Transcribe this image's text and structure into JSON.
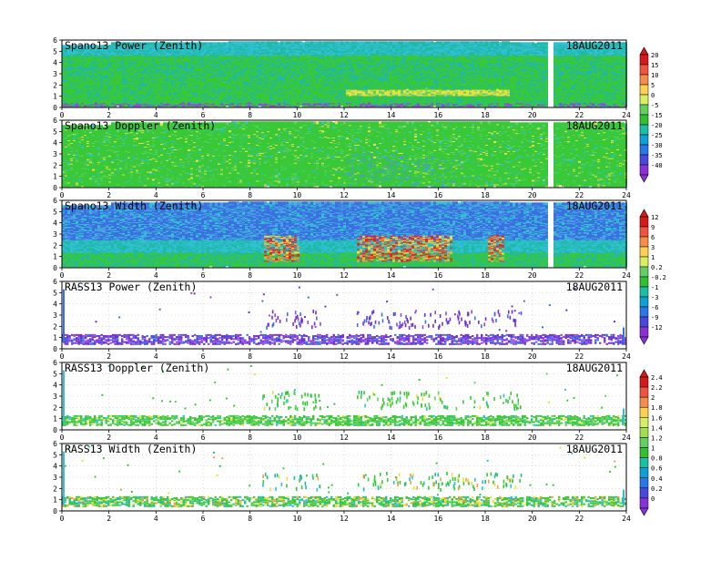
{
  "panels": [
    {
      "id": "spano-power",
      "title": "Spano13 Power (Zenith)",
      "date": "18AUG2011",
      "kind": "spano-power",
      "colorbar": 0
    },
    {
      "id": "spano-doppler",
      "title": "Spano13 Doppler (Zenith)",
      "date": "18AUG2011",
      "kind": "spano-doppler",
      "colorbar": 0
    },
    {
      "id": "spano-width",
      "title": "Spano13 Width (Zenith)",
      "date": "18AUG2011",
      "kind": "spano-width",
      "colorbar": 1
    },
    {
      "id": "rass-power",
      "title": "RASS13 Power (Zenith)",
      "date": "18AUG2011",
      "kind": "rass-power",
      "colorbar": 1
    },
    {
      "id": "rass-doppler",
      "title": "RASS13 Doppler (Zenith)",
      "date": "18AUG2011",
      "kind": "rass-doppler",
      "colorbar": 2
    },
    {
      "id": "rass-width",
      "title": "RASS13 Width (Zenith)",
      "date": "18AUG2011",
      "kind": "rass-width",
      "colorbar": 2
    }
  ],
  "colorbars": [
    {
      "id": "colorbar-1",
      "labels": [
        "20",
        "15",
        "10",
        "5",
        "0",
        "-5",
        "-15",
        "-20",
        "-25",
        "-30",
        "-35",
        "-40"
      ],
      "colors": [
        "#d7191c",
        "#f0543c",
        "#f88c4a",
        "#fdd050",
        "#d8f060",
        "#60d060",
        "#30c030",
        "#18c0a8",
        "#10a0d8",
        "#2878e8",
        "#4848e0",
        "#8c30d8"
      ]
    },
    {
      "id": "colorbar-2",
      "labels": [
        "12",
        "9",
        "6",
        "3",
        "1",
        "0.2",
        "-0.2",
        "-1",
        "-3",
        "-6",
        "-9",
        "-12"
      ],
      "colors": [
        "#d7191c",
        "#f0543c",
        "#f88c4a",
        "#fdd050",
        "#d8f060",
        "#60d060",
        "#30c030",
        "#18c0a8",
        "#10a0d8",
        "#2878e8",
        "#4848e0",
        "#8c30d8"
      ]
    },
    {
      "id": "colorbar-3",
      "labels": [
        "2.4",
        "2.2",
        "2",
        "1.8",
        "1.6",
        "1.4",
        "1.2",
        "1",
        "0.8",
        "0.6",
        "0.4",
        "0.2",
        "0"
      ],
      "colors": [
        "#d7191c",
        "#f0543c",
        "#f88c4a",
        "#fdd050",
        "#d8f060",
        "#a0e050",
        "#60d060",
        "#30c030",
        "#18c0a8",
        "#10a0d8",
        "#2878e8",
        "#4848e0",
        "#8c30d8"
      ]
    }
  ],
  "chart_data": [
    {
      "type": "heatmap",
      "title": "Spano13 Power (Zenith)",
      "date": "18AUG2011",
      "x_ticks": [
        "0",
        "2",
        "4",
        "6",
        "8",
        "10",
        "12",
        "14",
        "16",
        "18",
        "20",
        "22",
        "24"
      ],
      "y_ticks": [
        "0",
        "1",
        "2",
        "3",
        "4",
        "5",
        "6"
      ],
      "xlim": [
        0,
        24
      ],
      "ylim": [
        0,
        6
      ],
      "colorbar": [
        "20",
        "15",
        "10",
        "5",
        "0",
        "-5",
        "-15",
        "-20",
        "-25",
        "-30",
        "-35",
        "-40"
      ]
    },
    {
      "type": "heatmap",
      "title": "Spano13 Doppler (Zenith)",
      "date": "18AUG2011",
      "x_ticks": [
        "0",
        "2",
        "4",
        "6",
        "8",
        "10",
        "12",
        "14",
        "16",
        "18",
        "20",
        "22",
        "24"
      ],
      "y_ticks": [
        "0",
        "1",
        "2",
        "3",
        "4",
        "5",
        "6"
      ],
      "xlim": [
        0,
        24
      ],
      "ylim": [
        0,
        6
      ]
    },
    {
      "type": "heatmap",
      "title": "Spano13 Width (Zenith)",
      "date": "18AUG2011",
      "x_ticks": [
        "0",
        "2",
        "4",
        "6",
        "8",
        "10",
        "12",
        "14",
        "16",
        "18",
        "20",
        "22",
        "24"
      ],
      "y_ticks": [
        "0",
        "1",
        "2",
        "3",
        "4",
        "5",
        "6"
      ],
      "xlim": [
        0,
        24
      ],
      "ylim": [
        0,
        6
      ],
      "colorbar": [
        "12",
        "9",
        "6",
        "3",
        "1",
        "0.2",
        "-0.2",
        "-1",
        "-3",
        "-6",
        "-9",
        "-12"
      ]
    },
    {
      "type": "scatter",
      "title": "RASS13 Power (Zenith)",
      "date": "18AUG2011",
      "x_ticks": [
        "0",
        "2",
        "4",
        "6",
        "8",
        "10",
        "12",
        "14",
        "16",
        "18",
        "20",
        "22",
        "24"
      ],
      "y_ticks": [
        "0",
        "1",
        "2",
        "3",
        "4",
        "5",
        "6"
      ],
      "xlim": [
        0,
        24
      ],
      "ylim": [
        0,
        6
      ]
    },
    {
      "type": "scatter",
      "title": "RASS13 Doppler (Zenith)",
      "date": "18AUG2011",
      "x_ticks": [
        "0",
        "2",
        "4",
        "6",
        "8",
        "10",
        "12",
        "14",
        "16",
        "18",
        "20",
        "22",
        "24"
      ],
      "y_ticks": [
        "0",
        "1",
        "2",
        "3",
        "4",
        "5",
        "6"
      ],
      "xlim": [
        0,
        24
      ],
      "ylim": [
        0,
        6
      ],
      "colorbar": [
        "2.4",
        "2.2",
        "2",
        "1.8",
        "1.6",
        "1.4",
        "1.2",
        "1",
        "0.8",
        "0.6",
        "0.4",
        "0.2",
        "0"
      ]
    },
    {
      "type": "scatter",
      "title": "RASS13 Width (Zenith)",
      "date": "18AUG2011",
      "x_ticks": [
        "0",
        "2",
        "4",
        "6",
        "8",
        "10",
        "12",
        "14",
        "16",
        "18",
        "20",
        "22",
        "24"
      ],
      "y_ticks": [
        "0",
        "1",
        "2",
        "3",
        "4",
        "5",
        "6"
      ],
      "xlim": [
        0,
        24
      ],
      "ylim": [
        0,
        6
      ]
    }
  ]
}
